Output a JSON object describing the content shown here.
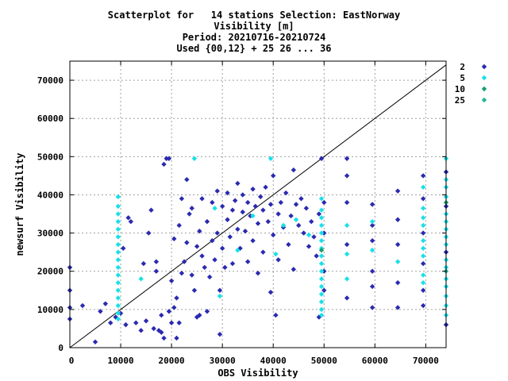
{
  "chart_data": {
    "type": "scatter",
    "title_lines": [
      "Scatterplot for   14 stations Selection: EastNorway",
      "Visibility [m]",
      "Period: 20210716-20210724",
      "Used {00,12} + 25 26 ... 36"
    ],
    "xlabel": "OBS Visibility",
    "ylabel": "newsurf Visibility",
    "xlim": [
      0,
      74000
    ],
    "ylim": [
      0,
      75000
    ],
    "xticks": [
      0,
      10000,
      20000,
      30000,
      40000,
      50000,
      60000,
      70000
    ],
    "yticks": [
      0,
      10000,
      20000,
      30000,
      40000,
      50000,
      60000,
      70000
    ],
    "grid": true,
    "diagonal": true,
    "legend_position": "right",
    "series": [
      {
        "name": "2",
        "color": "#2a2ab0",
        "symbol": "diamond"
      },
      {
        "name": "5",
        "color": "#19e0e8",
        "symbol": "diamond"
      },
      {
        "name": "10",
        "color": "#1a9e70",
        "symbol": "diamond"
      },
      {
        "name": "25",
        "color": "#20b89a",
        "symbol": "diamond"
      }
    ],
    "points": [
      [
        0,
        21000,
        0
      ],
      [
        0,
        15000,
        0
      ],
      [
        0,
        10500,
        0
      ],
      [
        0,
        7500,
        0
      ],
      [
        2500,
        11000,
        0
      ],
      [
        5000,
        1500,
        0
      ],
      [
        6000,
        9500,
        0
      ],
      [
        7000,
        11500,
        0
      ],
      [
        8000,
        6500,
        0
      ],
      [
        9000,
        8000,
        0
      ],
      [
        10000,
        9000,
        0
      ],
      [
        10500,
        26000,
        0
      ],
      [
        11000,
        6000,
        0
      ],
      [
        11500,
        34000,
        0
      ],
      [
        12000,
        33000,
        0
      ],
      [
        13000,
        6500,
        0
      ],
      [
        14000,
        4500,
        0
      ],
      [
        14500,
        22000,
        0
      ],
      [
        15000,
        7000,
        0
      ],
      [
        15500,
        30000,
        0
      ],
      [
        16000,
        36000,
        0
      ],
      [
        16500,
        5000,
        0
      ],
      [
        17000,
        20000,
        0
      ],
      [
        17000,
        22500,
        0
      ],
      [
        17500,
        4500,
        0
      ],
      [
        18000,
        4000,
        0
      ],
      [
        18000,
        8500,
        0
      ],
      [
        18500,
        2500,
        0
      ],
      [
        18500,
        48000,
        0
      ],
      [
        19000,
        49500,
        0
      ],
      [
        19500,
        9500,
        0
      ],
      [
        19500,
        49500,
        0
      ],
      [
        20000,
        6500,
        0
      ],
      [
        20000,
        17500,
        0
      ],
      [
        20500,
        10500,
        0
      ],
      [
        20500,
        28500,
        0
      ],
      [
        21000,
        13000,
        0
      ],
      [
        21000,
        2500,
        0
      ],
      [
        21500,
        6500,
        0
      ],
      [
        21500,
        32000,
        0
      ],
      [
        22000,
        39000,
        0
      ],
      [
        22000,
        19500,
        0
      ],
      [
        22500,
        22500,
        0
      ],
      [
        23000,
        44000,
        0
      ],
      [
        23000,
        27500,
        0
      ],
      [
        23500,
        35000,
        0
      ],
      [
        24000,
        36500,
        0
      ],
      [
        24000,
        19000,
        0
      ],
      [
        24500,
        15000,
        0
      ],
      [
        25000,
        8000,
        0
      ],
      [
        25000,
        26500,
        0
      ],
      [
        25500,
        8500,
        0
      ],
      [
        25500,
        30500,
        0
      ],
      [
        26000,
        24000,
        0
      ],
      [
        26000,
        39000,
        0
      ],
      [
        26500,
        21000,
        0
      ],
      [
        27000,
        9500,
        0
      ],
      [
        27000,
        33000,
        0
      ],
      [
        27500,
        18500,
        0
      ],
      [
        28000,
        28000,
        0
      ],
      [
        28000,
        38000,
        0
      ],
      [
        28500,
        23000,
        0
      ],
      [
        29000,
        41000,
        0
      ],
      [
        29000,
        30000,
        0
      ],
      [
        29500,
        3500,
        0
      ],
      [
        29500,
        15000,
        0
      ],
      [
        30000,
        37000,
        0
      ],
      [
        30000,
        26000,
        0
      ],
      [
        30500,
        21000,
        0
      ],
      [
        31000,
        33500,
        0
      ],
      [
        31000,
        40500,
        0
      ],
      [
        31500,
        29000,
        0
      ],
      [
        32000,
        36000,
        0
      ],
      [
        32000,
        22000,
        0
      ],
      [
        32500,
        38500,
        0
      ],
      [
        33000,
        43000,
        0
      ],
      [
        33000,
        31000,
        0
      ],
      [
        33500,
        26000,
        0
      ],
      [
        34000,
        35500,
        0
      ],
      [
        34000,
        40000,
        0
      ],
      [
        34500,
        30500,
        0
      ],
      [
        35000,
        38000,
        0
      ],
      [
        35000,
        22500,
        0
      ],
      [
        35500,
        34500,
        0
      ],
      [
        36000,
        41500,
        0
      ],
      [
        36000,
        28000,
        0
      ],
      [
        36500,
        37000,
        0
      ],
      [
        37000,
        32500,
        0
      ],
      [
        37000,
        19500,
        0
      ],
      [
        37500,
        39500,
        0
      ],
      [
        38000,
        36000,
        0
      ],
      [
        38000,
        25000,
        0
      ],
      [
        38500,
        42000,
        0
      ],
      [
        39000,
        33000,
        0
      ],
      [
        39500,
        37500,
        0
      ],
      [
        39500,
        14500,
        0
      ],
      [
        40000,
        45000,
        0
      ],
      [
        40000,
        29500,
        0
      ],
      [
        40500,
        8500,
        0
      ],
      [
        41000,
        35000,
        0
      ],
      [
        41000,
        23000,
        0
      ],
      [
        41500,
        38000,
        0
      ],
      [
        42000,
        31500,
        0
      ],
      [
        42500,
        40500,
        0
      ],
      [
        43000,
        27000,
        0
      ],
      [
        43500,
        34500,
        0
      ],
      [
        44000,
        46500,
        0
      ],
      [
        44000,
        20500,
        0
      ],
      [
        44500,
        37500,
        0
      ],
      [
        45000,
        32000,
        0
      ],
      [
        45500,
        39000,
        0
      ],
      [
        46000,
        30000,
        0
      ],
      [
        46500,
        36500,
        0
      ],
      [
        47000,
        26500,
        0
      ],
      [
        47500,
        33000,
        0
      ],
      [
        48000,
        29000,
        0
      ],
      [
        48500,
        24000,
        0
      ],
      [
        49000,
        35000,
        0
      ],
      [
        49000,
        8000,
        0
      ],
      [
        49500,
        49500,
        0
      ],
      [
        50000,
        38000,
        0
      ],
      [
        50000,
        30000,
        0
      ],
      [
        50000,
        20000,
        0
      ],
      [
        50000,
        15000,
        0
      ],
      [
        54500,
        49500,
        0
      ],
      [
        54500,
        45000,
        0
      ],
      [
        54500,
        38000,
        0
      ],
      [
        54500,
        27000,
        0
      ],
      [
        54500,
        13000,
        0
      ],
      [
        59500,
        37500,
        0
      ],
      [
        59500,
        32000,
        0
      ],
      [
        59500,
        28000,
        0
      ],
      [
        59500,
        20000,
        0
      ],
      [
        59500,
        16000,
        0
      ],
      [
        59500,
        10500,
        0
      ],
      [
        64500,
        41000,
        0
      ],
      [
        64500,
        33500,
        0
      ],
      [
        64500,
        27000,
        0
      ],
      [
        64500,
        17000,
        0
      ],
      [
        64500,
        10500,
        0
      ],
      [
        69500,
        45000,
        0
      ],
      [
        69500,
        39000,
        0
      ],
      [
        69500,
        30000,
        0
      ],
      [
        69500,
        22000,
        0
      ],
      [
        69500,
        15000,
        0
      ],
      [
        69500,
        11000,
        0
      ],
      [
        74000,
        46000,
        0
      ],
      [
        74000,
        37000,
        0
      ],
      [
        74000,
        25000,
        0
      ],
      [
        74000,
        6000,
        0
      ],
      [
        9500,
        39500,
        1
      ],
      [
        9500,
        37000,
        1
      ],
      [
        9500,
        35000,
        1
      ],
      [
        9500,
        33000,
        1
      ],
      [
        9500,
        31000,
        1
      ],
      [
        9500,
        29000,
        1
      ],
      [
        9500,
        27000,
        1
      ],
      [
        9500,
        25000,
        1
      ],
      [
        9500,
        23000,
        1
      ],
      [
        9500,
        21000,
        1
      ],
      [
        9500,
        19000,
        1
      ],
      [
        9500,
        17000,
        1
      ],
      [
        9500,
        15000,
        1
      ],
      [
        9500,
        13000,
        1
      ],
      [
        9500,
        11000,
        1
      ],
      [
        9500,
        9000,
        1
      ],
      [
        9500,
        7500,
        1
      ],
      [
        14000,
        18000,
        1
      ],
      [
        24500,
        49500,
        1
      ],
      [
        28500,
        36500,
        1
      ],
      [
        29500,
        13500,
        1
      ],
      [
        33000,
        25500,
        1
      ],
      [
        36000,
        34500,
        1
      ],
      [
        39500,
        49500,
        1
      ],
      [
        40500,
        24500,
        1
      ],
      [
        42000,
        32000,
        1
      ],
      [
        44500,
        33500,
        1
      ],
      [
        47000,
        29500,
        1
      ],
      [
        49500,
        39000,
        1
      ],
      [
        49500,
        36000,
        1
      ],
      [
        49500,
        34000,
        1
      ],
      [
        49500,
        32000,
        1
      ],
      [
        49500,
        30000,
        1
      ],
      [
        49500,
        28000,
        1
      ],
      [
        49500,
        26000,
        1
      ],
      [
        49500,
        24000,
        1
      ],
      [
        49500,
        22000,
        1
      ],
      [
        49500,
        20000,
        1
      ],
      [
        49500,
        18000,
        1
      ],
      [
        49500,
        16000,
        1
      ],
      [
        49500,
        14000,
        1
      ],
      [
        49500,
        12000,
        1
      ],
      [
        49500,
        10000,
        1
      ],
      [
        49500,
        8500,
        1
      ],
      [
        54500,
        32000,
        1
      ],
      [
        54500,
        24500,
        1
      ],
      [
        54500,
        18000,
        1
      ],
      [
        59500,
        33000,
        1
      ],
      [
        59500,
        25500,
        1
      ],
      [
        64500,
        22500,
        1
      ],
      [
        69500,
        42000,
        1
      ],
      [
        69500,
        36500,
        1
      ],
      [
        69500,
        34000,
        1
      ],
      [
        69500,
        32000,
        1
      ],
      [
        69500,
        28000,
        1
      ],
      [
        69500,
        26000,
        1
      ],
      [
        69500,
        24000,
        1
      ],
      [
        69500,
        19000,
        1
      ],
      [
        69500,
        17000,
        1
      ],
      [
        74000,
        49500,
        1
      ],
      [
        74000,
        44000,
        1
      ],
      [
        74000,
        42000,
        1
      ],
      [
        74000,
        39500,
        1
      ],
      [
        74000,
        35000,
        1
      ],
      [
        74000,
        33000,
        1
      ],
      [
        74000,
        31000,
        1
      ],
      [
        74000,
        29000,
        1
      ],
      [
        74000,
        27000,
        1
      ],
      [
        74000,
        23000,
        1
      ],
      [
        74000,
        21000,
        1
      ],
      [
        74000,
        18000,
        1
      ],
      [
        74000,
        16000,
        1
      ],
      [
        74000,
        13500,
        1
      ],
      [
        74000,
        11000,
        1
      ],
      [
        74000,
        8500,
        1
      ],
      [
        49500,
        25500,
        2
      ],
      [
        74000,
        38000,
        2
      ],
      [
        74000,
        20000,
        3
      ]
    ]
  }
}
